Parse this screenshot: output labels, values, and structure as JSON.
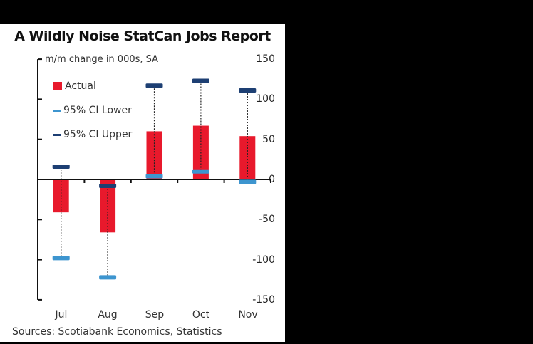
{
  "chart_data": {
    "type": "bar",
    "title": "A Wildly Noise StatCan Jobs Report",
    "subtitle": "m/m change in 000s, SA",
    "xlabel": "",
    "ylabel": "m/m change in 000s, SA",
    "ylim": [
      -150,
      150
    ],
    "yticks": [
      150,
      100,
      50,
      0,
      -50,
      -100,
      -150
    ],
    "categories": [
      "Jul",
      "Aug",
      "Sep",
      "Oct",
      "Nov"
    ],
    "series": [
      {
        "name": "Actual",
        "type": "bar",
        "color": "#e8192c",
        "values": [
          -41,
          -66,
          60,
          67,
          54
        ]
      },
      {
        "name": "95% CI Lower",
        "type": "marker",
        "color": "#3d95cf",
        "values": [
          -98,
          -122,
          4,
          10,
          -3
        ]
      },
      {
        "name": "95% CI Upper",
        "type": "marker",
        "color": "#1d3f73",
        "values": [
          16,
          -8,
          117,
          123,
          111
        ]
      }
    ],
    "legend_position": "upper-left inside",
    "grid": false,
    "source": "Sources: Scotiabank Economics, Statistics"
  },
  "labels": {
    "title": "A Wildly Noise StatCan Jobs Report",
    "subtitle": "m/m change in 000s, SA",
    "source": "Sources: Scotiabank Economics, Statistics",
    "yticks": [
      "150",
      "100",
      "50",
      "0",
      "-50",
      "-100",
      "-150"
    ],
    "categories": [
      "Jul",
      "Aug",
      "Sep",
      "Oct",
      "Nov"
    ],
    "legend": [
      "Actual",
      "95% CI Lower",
      "95% CI Upper"
    ]
  },
  "colors": {
    "actual": "#e8192c",
    "ci_lower": "#3d95cf",
    "ci_upper": "#1d3f73",
    "axis": "#111111"
  }
}
